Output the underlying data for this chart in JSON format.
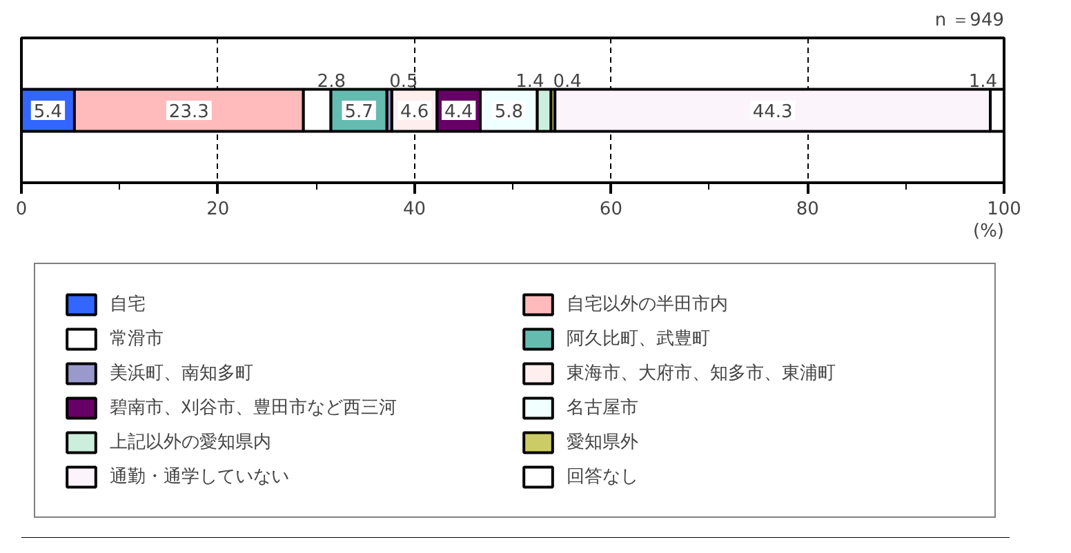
{
  "chart_data": {
    "type": "bar",
    "orientation": "horizontal",
    "stacked": true,
    "categories": [
      null
    ],
    "series": [
      {
        "name": "自宅",
        "color": "#3366ff",
        "values": [
          5.4
        ]
      },
      {
        "name": "自宅以外の半田市内",
        "color": "#ffbbbb",
        "values": [
          23.3
        ]
      },
      {
        "name": "常滑市",
        "color": "#ffffff",
        "values": [
          2.8
        ]
      },
      {
        "name": "阿久比町、武豊町",
        "color": "#66bbb0",
        "values": [
          5.7
        ]
      },
      {
        "name": "美浜町、南知多町",
        "color": "#9999cc",
        "values": [
          0.5
        ]
      },
      {
        "name": "東海市、大府市、知多市、東浦町",
        "color": "#ffeeee",
        "values": [
          4.6
        ]
      },
      {
        "name": "碧南市、刈谷市、豊田市など西三河",
        "color": "#660066",
        "values": [
          4.4
        ]
      },
      {
        "name": "名古屋市",
        "color": "#f0ffff",
        "values": [
          5.8
        ]
      },
      {
        "name": "上記以外の愛知県内",
        "color": "#cceedd",
        "values": [
          1.4
        ]
      },
      {
        "name": "愛知県外",
        "color": "#cccc66",
        "values": [
          0.4
        ]
      },
      {
        "name": "通勤・通学していない",
        "color": "#fbf4fb",
        "values": [
          44.3
        ]
      },
      {
        "name": "回答なし",
        "color": "#ffffff",
        "values": [
          1.4
        ]
      }
    ],
    "xlim": [
      0,
      100
    ],
    "xticks": [
      0,
      20,
      40,
      60,
      80,
      100
    ],
    "xlabel": "(%)",
    "grid": "x",
    "legend": "bottom",
    "data_labels": true,
    "annotations": [
      "n ＝949"
    ]
  }
}
